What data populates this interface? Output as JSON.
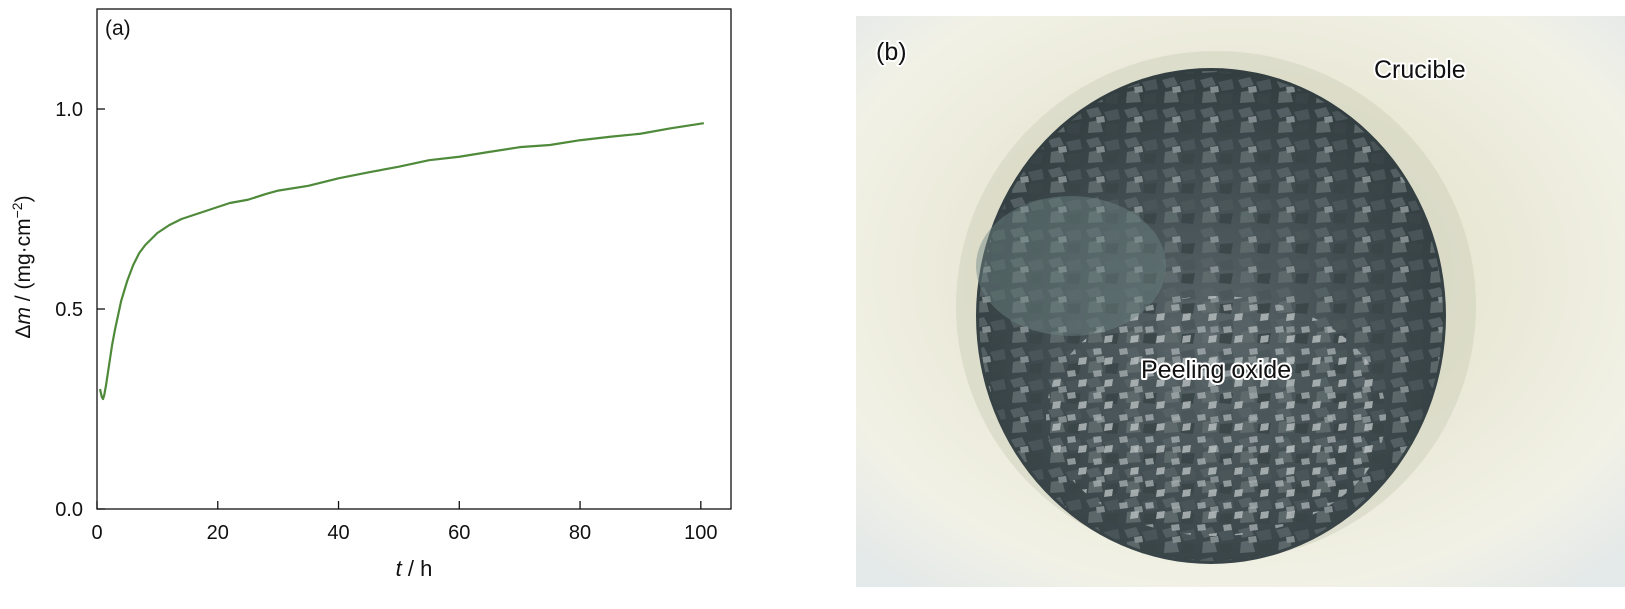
{
  "chart_data": {
    "type": "line",
    "panel_label": "(a)",
    "xlabel_var": "t",
    "xlabel_unit": " / h",
    "ylabel_var": "m",
    "ylabel_prefix": "Δ",
    "ylabel_unit": " / (mg·cm",
    "ylabel_exp": "−2",
    "ylabel_close": ")",
    "xlim": [
      0,
      105
    ],
    "ylim": [
      0,
      1.25
    ],
    "xticks": [
      0,
      20,
      40,
      60,
      80,
      100
    ],
    "yticks": [
      0.0,
      0.5,
      1.0
    ],
    "xtick_labels": [
      "0",
      "20",
      "40",
      "60",
      "80",
      "100"
    ],
    "ytick_labels": [
      "0.0",
      "0.5",
      "1.0"
    ],
    "grid": false,
    "line_color": "#4f8a3b",
    "series": [
      {
        "x": [
          0.5,
          0.8,
          1.0,
          1.2,
          1.5,
          2,
          2.5,
          3,
          4,
          5,
          6,
          7,
          8,
          9,
          10,
          12,
          14,
          16,
          18,
          20,
          22,
          25,
          28,
          30,
          35,
          40,
          45,
          50,
          55,
          60,
          65,
          70,
          75,
          80,
          85,
          90,
          95,
          100.5
        ],
        "y": [
          0.3,
          0.28,
          0.275,
          0.285,
          0.31,
          0.36,
          0.41,
          0.45,
          0.52,
          0.57,
          0.61,
          0.64,
          0.66,
          0.675,
          0.69,
          0.71,
          0.725,
          0.735,
          0.745,
          0.755,
          0.765,
          0.775,
          0.787,
          0.795,
          0.81,
          0.825,
          0.842,
          0.857,
          0.87,
          0.882,
          0.893,
          0.903,
          0.912,
          0.921,
          0.93,
          0.94,
          0.95,
          0.965
        ]
      }
    ]
  },
  "photo": {
    "panel_label": "(b)",
    "label_crucible": "Crucible",
    "label_oxide": "Peeling oxide",
    "crucible_color": "#eceade",
    "oxide_color": "#3f4a4d"
  }
}
